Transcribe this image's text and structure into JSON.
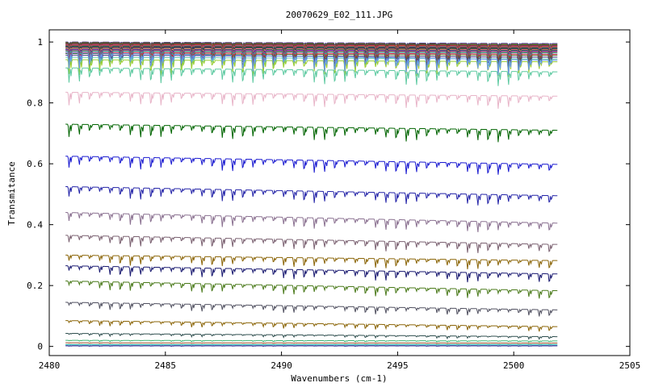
{
  "chart_data": {
    "type": "line",
    "title": "20070629_E02_111.JPG",
    "xlabel": "Wavenumbers (cm-1)",
    "ylabel": "Transmitance",
    "xlim": [
      2480,
      2505
    ],
    "ylim": [
      -0.03,
      1.04
    ],
    "x_ticks": [
      2480,
      2485,
      2490,
      2495,
      2500,
      2505
    ],
    "y_ticks": [
      0,
      0.2,
      0.4,
      0.6,
      0.8,
      1
    ],
    "x_tick_labels": [
      "2480",
      "2485",
      "2490",
      "2495",
      "2500",
      "2505"
    ],
    "y_tick_labels": [
      "0",
      "0.2",
      "0.4",
      "0.6",
      "0.8",
      "1"
    ],
    "x_range": [
      2480.7,
      2501.9
    ],
    "absorption_line_spacing_cm1": 0.44,
    "grid": false,
    "legend": "none",
    "series": [
      {
        "start": 1.0,
        "end": 0.995,
        "depth": 0.008,
        "color": "#3a3a8c"
      },
      {
        "start": 0.998,
        "end": 0.992,
        "depth": 0.012,
        "color": "#8b4513"
      },
      {
        "start": 0.996,
        "end": 0.99,
        "depth": 0.014,
        "color": "#228b22"
      },
      {
        "start": 0.994,
        "end": 0.988,
        "depth": 0.016,
        "color": "#800080"
      },
      {
        "start": 0.992,
        "end": 0.986,
        "depth": 0.018,
        "color": "#ff4500"
      },
      {
        "start": 0.99,
        "end": 0.984,
        "depth": 0.02,
        "color": "#4682b4"
      },
      {
        "start": 0.988,
        "end": 0.982,
        "depth": 0.022,
        "color": "#b22222"
      },
      {
        "start": 0.986,
        "end": 0.98,
        "depth": 0.024,
        "color": "#2e8b57"
      },
      {
        "start": 0.984,
        "end": 0.978,
        "depth": 0.026,
        "color": "#000080"
      },
      {
        "start": 0.982,
        "end": 0.976,
        "depth": 0.028,
        "color": "#808000"
      },
      {
        "start": 0.98,
        "end": 0.974,
        "depth": 0.03,
        "color": "#ff69b4"
      },
      {
        "start": 0.977,
        "end": 0.972,
        "depth": 0.032,
        "color": "#006400"
      },
      {
        "start": 0.975,
        "end": 0.97,
        "depth": 0.034,
        "color": "#8a2be2"
      },
      {
        "start": 0.972,
        "end": 0.967,
        "depth": 0.036,
        "color": "#a0522d"
      },
      {
        "start": 0.97,
        "end": 0.964,
        "depth": 0.038,
        "color": "#20b2aa"
      },
      {
        "start": 0.966,
        "end": 0.96,
        "depth": 0.04,
        "color": "#dc143c"
      },
      {
        "start": 0.962,
        "end": 0.956,
        "depth": 0.042,
        "color": "#556b2f"
      },
      {
        "start": 0.957,
        "end": 0.95,
        "depth": 0.044,
        "color": "#483d8b"
      },
      {
        "start": 0.95,
        "end": 0.944,
        "depth": 0.046,
        "color": "#66cdaa"
      },
      {
        "start": 0.942,
        "end": 0.935,
        "depth": 0.048,
        "color": "#9acd32"
      },
      {
        "start": 0.965,
        "end": 0.94,
        "depth": 0.05,
        "color": "#6495ed"
      },
      {
        "start": 0.915,
        "end": 0.902,
        "depth": 0.045,
        "color": "#5cc9a0"
      },
      {
        "start": 0.835,
        "end": 0.822,
        "depth": 0.04,
        "color": "#e8b4c8"
      },
      {
        "start": 0.73,
        "end": 0.71,
        "depth": 0.04,
        "color": "#006400"
      },
      {
        "start": 0.625,
        "end": 0.598,
        "depth": 0.038,
        "color": "#1a1ad0"
      },
      {
        "start": 0.525,
        "end": 0.495,
        "depth": 0.036,
        "color": "#2323a8"
      },
      {
        "start": 0.44,
        "end": 0.405,
        "depth": 0.034,
        "color": "#8a7090"
      },
      {
        "start": 0.365,
        "end": 0.335,
        "depth": 0.032,
        "color": "#7a6070"
      },
      {
        "start": 0.3,
        "end": 0.282,
        "depth": 0.03,
        "color": "#8b6508"
      },
      {
        "start": 0.265,
        "end": 0.238,
        "depth": 0.03,
        "color": "#191970"
      },
      {
        "start": 0.215,
        "end": 0.183,
        "depth": 0.028,
        "color": "#4a7a1a"
      },
      {
        "start": 0.145,
        "end": 0.12,
        "depth": 0.022,
        "color": "#505060"
      },
      {
        "start": 0.085,
        "end": 0.065,
        "depth": 0.016,
        "color": "#8b6508"
      },
      {
        "start": 0.043,
        "end": 0.032,
        "depth": 0.008,
        "color": "#2f4f4f"
      },
      {
        "start": 0.02,
        "end": 0.018,
        "depth": 0.004,
        "color": "#3cb371"
      },
      {
        "start": 0.012,
        "end": 0.011,
        "depth": 0.002,
        "color": "#a0522d"
      },
      {
        "start": 0.006,
        "end": 0.006,
        "depth": 0.001,
        "color": "#20b2aa"
      },
      {
        "start": 0.002,
        "end": 0.002,
        "depth": 0.001,
        "color": "#000080"
      }
    ]
  }
}
